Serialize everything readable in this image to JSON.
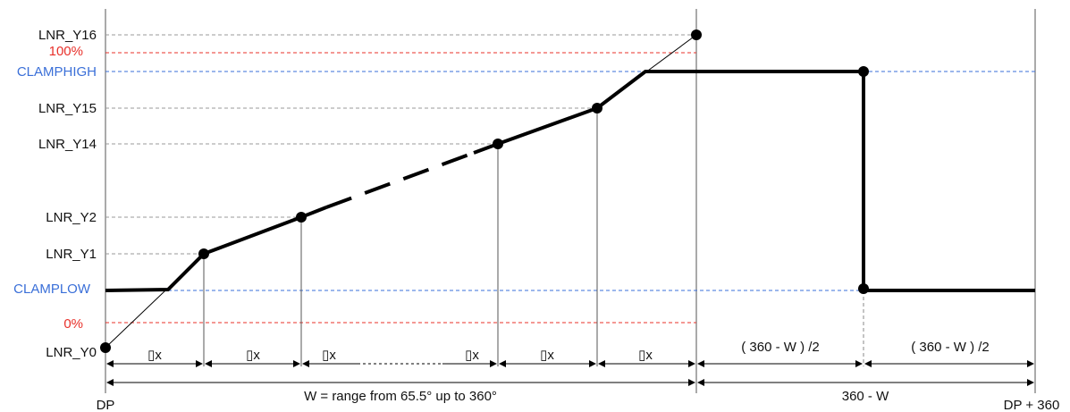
{
  "y_labels": {
    "y16": "LNR_Y16",
    "pct100": "100%",
    "clamphigh": "CLAMPHIGH",
    "y15": "LNR_Y15",
    "y14": "LNR_Y14",
    "y2": "LNR_Y2",
    "y1": "LNR_Y1",
    "clamplow": "CLAMPLOW",
    "pct0": "0%",
    "y0": "LNR_Y0"
  },
  "x_labels": {
    "dp": "DP",
    "dp360": "DP + 360"
  },
  "dimensions": {
    "dx": "▯x",
    "half": "( 360 - W ) /2",
    "w_range": "W = range from 65.5° up to 360°",
    "complement": "360 - W"
  },
  "colors": {
    "limit_red": "#e8302a",
    "clamp_blue": "#3a6fd8",
    "grid_gray": "#9a9a9a",
    "curve": "#000000"
  }
}
